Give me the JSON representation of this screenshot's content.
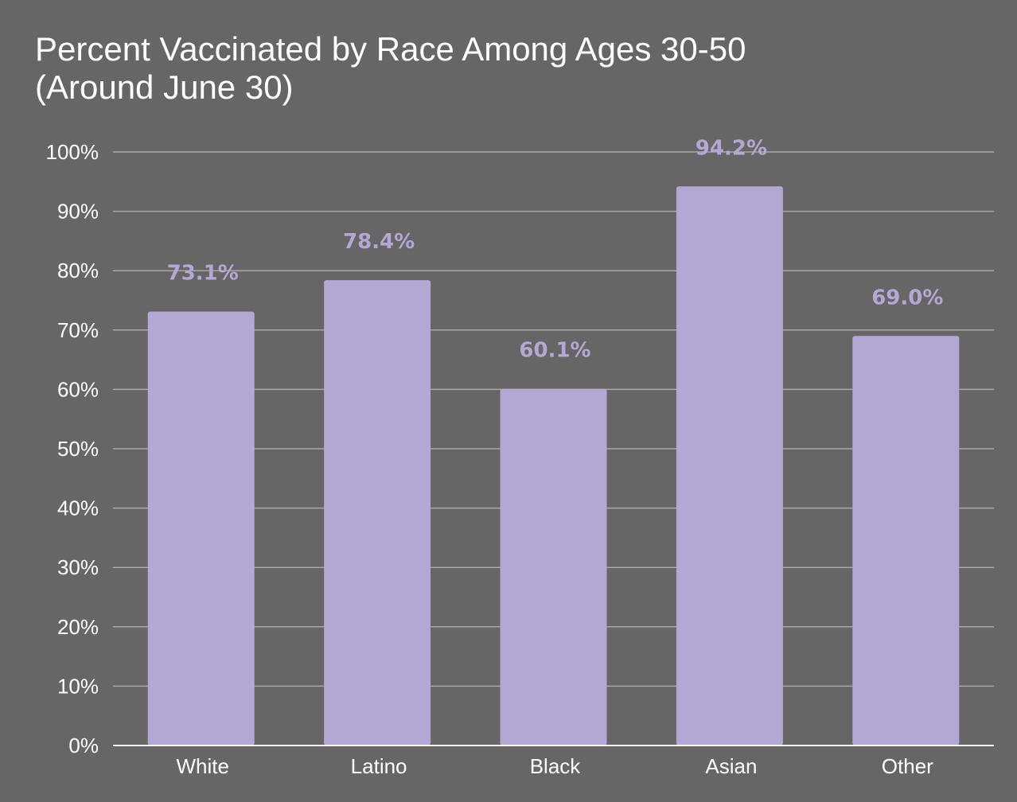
{
  "chart_data": {
    "type": "bar",
    "title_line1": "Percent Vaccinated by Race Among Ages 30-50",
    "title_line2": "(Around June 30)",
    "categories": [
      "White",
      "Latino",
      "Black",
      "Asian",
      "Other"
    ],
    "values": [
      73.1,
      78.4,
      60.1,
      94.2,
      69.0
    ],
    "data_labels": [
      "73.1%",
      "78.4%",
      "60.1%",
      "94.2%",
      "69.0%"
    ],
    "ylim": [
      0,
      100
    ],
    "y_ticks": [
      0,
      10,
      20,
      30,
      40,
      50,
      60,
      70,
      80,
      90,
      100
    ],
    "y_tick_labels": [
      "0%",
      "10%",
      "20%",
      "30%",
      "40%",
      "50%",
      "60%",
      "70%",
      "80%",
      "90%",
      "100%"
    ],
    "grid": true,
    "legend": "none",
    "colors": {
      "background": "#666666",
      "bar": "#b3a8d4",
      "label": "#b3a8d4",
      "text": "#ffffff",
      "grid": "#a6a6a6",
      "axis": "#ffffff"
    }
  }
}
